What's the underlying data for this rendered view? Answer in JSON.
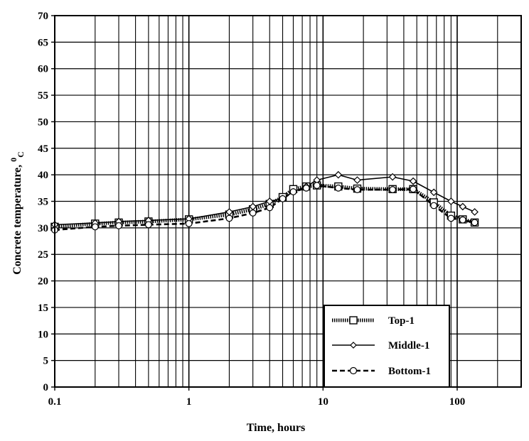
{
  "chart_data": {
    "type": "line",
    "title": "",
    "xlabel": "Time, hours",
    "ylabel": "Concrete temperature, 0C",
    "ylabel_main": "Concrete temperature, ",
    "ylabel_sup": "0",
    "ylabel_sub": "C",
    "xscale": "log",
    "xlim": [
      0.1,
      300
    ],
    "ylim": [
      0,
      70
    ],
    "grid": true,
    "legend_position": "bottom-right",
    "x_tick_labels": [
      "0.1",
      "1",
      "10",
      "100"
    ],
    "y_tick_labels": [
      "0",
      "5",
      "10",
      "15",
      "20",
      "25",
      "30",
      "35",
      "40",
      "45",
      "50",
      "55",
      "60",
      "65",
      "70"
    ],
    "series": [
      {
        "name": "Top-1",
        "marker": "square",
        "line_style": "dotted-thick",
        "points": [
          [
            0.1,
            30.2
          ],
          [
            0.2,
            30.8
          ],
          [
            0.3,
            31.0
          ],
          [
            0.5,
            31.2
          ],
          [
            1,
            31.6
          ],
          [
            2,
            32.5
          ],
          [
            3,
            33.5
          ],
          [
            4,
            34.5
          ],
          [
            5,
            35.8
          ],
          [
            6,
            37.3
          ],
          [
            7.5,
            37.8
          ],
          [
            9,
            38.0
          ],
          [
            13,
            37.8
          ],
          [
            18,
            37.4
          ],
          [
            33,
            37.3
          ],
          [
            47,
            37.3
          ],
          [
            67,
            34.8
          ],
          [
            90,
            32.3
          ],
          [
            110,
            31.6
          ],
          [
            135,
            31.0
          ]
        ]
      },
      {
        "name": "Middle-1",
        "marker": "diamond",
        "line_style": "solid",
        "points": [
          [
            0.1,
            30.6
          ],
          [
            0.2,
            30.9
          ],
          [
            0.3,
            31.2
          ],
          [
            0.5,
            31.4
          ],
          [
            1,
            31.7
          ],
          [
            2,
            33.0
          ],
          [
            3,
            34.0
          ],
          [
            4,
            35.0
          ],
          [
            5,
            35.5
          ],
          [
            6,
            36.8
          ],
          [
            7.5,
            37.8
          ],
          [
            9,
            39.0
          ],
          [
            13,
            40.0
          ],
          [
            18,
            39.0
          ],
          [
            33,
            39.6
          ],
          [
            47,
            38.8
          ],
          [
            67,
            36.7
          ],
          [
            90,
            35.0
          ],
          [
            110,
            34.0
          ],
          [
            135,
            33.0
          ]
        ]
      },
      {
        "name": "Bottom-1",
        "marker": "circle",
        "line_style": "dashed",
        "points": [
          [
            0.1,
            29.6
          ],
          [
            0.2,
            30.2
          ],
          [
            0.3,
            30.4
          ],
          [
            0.5,
            30.6
          ],
          [
            1,
            30.8
          ],
          [
            2,
            31.8
          ],
          [
            3,
            32.8
          ],
          [
            4,
            33.8
          ],
          [
            5,
            35.5
          ],
          [
            6,
            36.8
          ],
          [
            7.5,
            37.5
          ],
          [
            9,
            38.0
          ],
          [
            13,
            37.5
          ],
          [
            18,
            37.2
          ],
          [
            33,
            37.2
          ],
          [
            47,
            37.3
          ],
          [
            67,
            34.2
          ],
          [
            90,
            31.8
          ],
          [
            110,
            31.5
          ],
          [
            135,
            31.0
          ]
        ]
      }
    ]
  }
}
